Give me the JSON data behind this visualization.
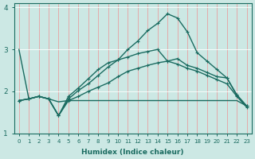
{
  "xlabel": "Humidex (Indice chaleur)",
  "xlim": [
    -0.5,
    23.5
  ],
  "ylim": [
    1,
    4.1
  ],
  "yticks": [
    1,
    2,
    3,
    4
  ],
  "xticks": [
    0,
    1,
    2,
    3,
    4,
    5,
    6,
    7,
    8,
    9,
    10,
    11,
    12,
    13,
    14,
    15,
    16,
    17,
    18,
    19,
    20,
    21,
    22,
    23
  ],
  "bg_color": "#cce8e4",
  "grid_color_v": "#e8a0a0",
  "grid_color_h": "#ffffff",
  "line_color": "#1a6b60",
  "lines": [
    {
      "x": [
        0,
        1,
        2,
        3,
        4,
        5,
        10,
        11,
        22,
        23
      ],
      "y": [
        3.0,
        1.82,
        1.88,
        1.82,
        1.75,
        1.78,
        1.78,
        1.78,
        1.78,
        1.65
      ],
      "marker": null,
      "lw": 1.0,
      "full": false
    },
    {
      "x": [
        0,
        1,
        2,
        3,
        4,
        5,
        6,
        7,
        8,
        9,
        10,
        11,
        12,
        13,
        14,
        15,
        16,
        17,
        18,
        19,
        20,
        21,
        22,
        23
      ],
      "y": [
        1.78,
        1.82,
        1.88,
        1.82,
        1.42,
        1.78,
        1.88,
        2.0,
        2.1,
        2.2,
        2.35,
        2.48,
        2.55,
        2.62,
        2.68,
        2.72,
        2.78,
        2.62,
        2.55,
        2.45,
        2.35,
        2.32,
        1.92,
        1.65
      ],
      "marker": "+",
      "lw": 1.0
    },
    {
      "x": [
        0,
        1,
        2,
        3,
        4,
        5,
        6,
        7,
        8,
        9,
        10,
        11,
        12,
        13,
        14,
        15,
        16,
        17,
        18,
        19,
        20,
        21,
        22,
        23
      ],
      "y": [
        1.78,
        1.82,
        1.88,
        1.82,
        1.42,
        1.82,
        2.02,
        2.18,
        2.38,
        2.58,
        2.75,
        3.0,
        3.2,
        3.45,
        3.62,
        3.85,
        3.75,
        3.42,
        2.92,
        2.72,
        2.52,
        2.32,
        1.9,
        1.65
      ],
      "marker": "+",
      "lw": 1.0
    },
    {
      "x": [
        0,
        1,
        2,
        3,
        4,
        5,
        6,
        7,
        8,
        9,
        10,
        11,
        12,
        13,
        14,
        15,
        16,
        17,
        18,
        19,
        20,
        21,
        22,
        23
      ],
      "y": [
        1.78,
        1.82,
        1.88,
        1.82,
        1.42,
        1.88,
        2.08,
        2.3,
        2.52,
        2.68,
        2.75,
        2.82,
        2.9,
        2.95,
        3.0,
        2.72,
        2.65,
        2.55,
        2.48,
        2.38,
        2.28,
        2.18,
        1.88,
        1.62
      ],
      "marker": "+",
      "lw": 1.0
    }
  ]
}
